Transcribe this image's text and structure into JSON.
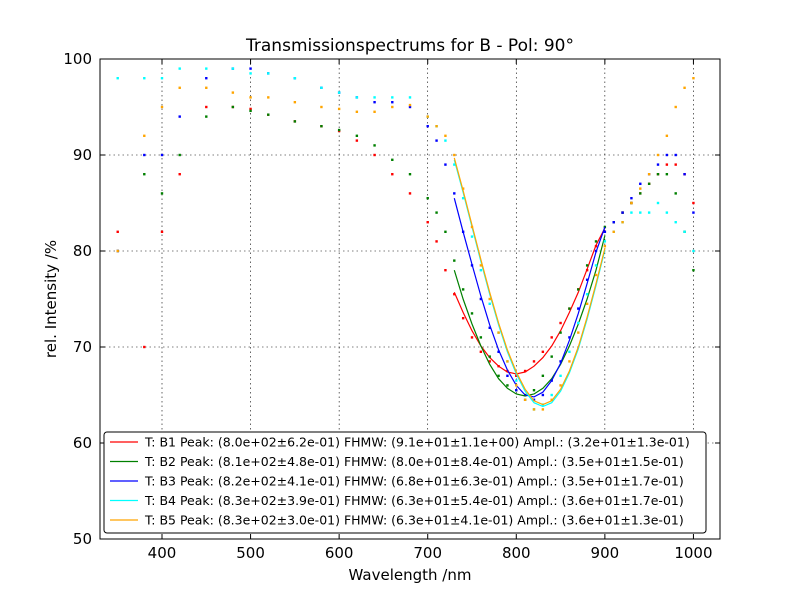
{
  "chart_data": {
    "type": "line",
    "title": "Transmissionspectrums for B - Pol: 90°",
    "xlabel": "Wavelength  /nm",
    "ylabel": "rel. Intensity  /%",
    "xlim": [
      330,
      1030
    ],
    "ylim": [
      50,
      100
    ],
    "xticks": [
      400,
      500,
      600,
      700,
      800,
      900,
      1000
    ],
    "yticks": [
      50,
      60,
      70,
      80,
      90,
      100
    ],
    "grid": true,
    "legend_position": "bottom-center",
    "series": [
      {
        "name": "T: B1 Peak: (8.0e+02±6.2e-01)  FHMW: (9.1e+01±1.1e+00)  Ampl.: (3.2e+01±1.3e-01)",
        "color": "#ff0000",
        "x": [
          350,
          380,
          400,
          420,
          450,
          480,
          500,
          520,
          550,
          580,
          600,
          620,
          640,
          660,
          680,
          700,
          710,
          720,
          730,
          740,
          750,
          760,
          770,
          780,
          790,
          800,
          810,
          820,
          830,
          840,
          850,
          860,
          870,
          880,
          890,
          900,
          910,
          920,
          930,
          940,
          950,
          960,
          970,
          980,
          990,
          1000
        ],
        "y": [
          82,
          70,
          82,
          88,
          95,
          95,
          94.8,
          94.2,
          93.5,
          93,
          92.5,
          91.5,
          90,
          88,
          86,
          83,
          81,
          78,
          75.5,
          73,
          71,
          69.5,
          68.5,
          68,
          67.5,
          67,
          67.5,
          68.5,
          69.5,
          71,
          72.5,
          74,
          76,
          78,
          80.5,
          82,
          83,
          84,
          85,
          86,
          87,
          88,
          89,
          89,
          88,
          85
        ],
        "fit_x": [
          730,
          740,
          750,
          760,
          770,
          780,
          790,
          800,
          810,
          820,
          830,
          840,
          850,
          860,
          870,
          880,
          890,
          900
        ],
        "fit_y": [
          75.7,
          73.6,
          71.7,
          70.1,
          68.9,
          68.0,
          67.4,
          67.2,
          67.4,
          68.0,
          68.9,
          70.1,
          71.7,
          73.6,
          75.7,
          78.1,
          80.6,
          82.4
        ]
      },
      {
        "name": "T: B2 Peak: (8.1e+02±4.8e-01)  FHMW: (8.0e+01±8.4e-01)  Ampl.: (3.5e+01±1.5e-01)",
        "color": "#008000",
        "x": [
          350,
          380,
          400,
          420,
          450,
          480,
          500,
          520,
          550,
          580,
          600,
          620,
          640,
          660,
          680,
          700,
          710,
          720,
          730,
          740,
          750,
          760,
          770,
          780,
          790,
          800,
          810,
          820,
          830,
          840,
          850,
          860,
          870,
          880,
          890,
          900,
          910,
          920,
          930,
          940,
          950,
          960,
          970,
          980,
          990,
          1000
        ],
        "y": [
          80,
          88,
          86,
          90,
          94,
          95,
          94.6,
          94.2,
          93.5,
          93,
          92.6,
          92,
          91,
          89.5,
          88,
          85.5,
          84,
          82,
          79,
          76,
          73.5,
          71,
          69,
          67,
          66,
          65.5,
          65,
          65.5,
          67,
          69,
          71.5,
          74,
          76,
          78.5,
          81,
          82.5,
          83,
          84,
          85,
          86,
          87,
          88,
          88,
          86,
          82,
          78
        ],
        "fit_x": [
          730,
          740,
          750,
          760,
          770,
          780,
          790,
          800,
          810,
          820,
          830,
          840,
          850,
          860,
          870,
          880,
          890,
          900
        ],
        "fit_y": [
          78.0,
          75.0,
          72.4,
          70.1,
          68.2,
          66.7,
          65.7,
          65.1,
          64.9,
          65.1,
          65.7,
          66.7,
          68.2,
          70.1,
          72.4,
          75.0,
          78.0,
          81.6
        ]
      },
      {
        "name": "T: B3 Peak: (8.2e+02±4.1e-01)  FHMW: (6.8e+01±6.3e-01)  Ampl.: (3.5e+01±1.7e-01)",
        "color": "#0000ff",
        "x": [
          350,
          380,
          400,
          420,
          450,
          480,
          500,
          520,
          550,
          580,
          600,
          620,
          640,
          660,
          680,
          700,
          710,
          720,
          730,
          740,
          750,
          760,
          770,
          780,
          790,
          800,
          810,
          820,
          830,
          840,
          850,
          860,
          870,
          880,
          890,
          900,
          910,
          920,
          930,
          940,
          950,
          960,
          970,
          980,
          990,
          1000
        ],
        "y": [
          80,
          90,
          90,
          94,
          98,
          99,
          99,
          98.5,
          98,
          97,
          96.5,
          96,
          95.5,
          95.5,
          95,
          93,
          91.5,
          89,
          86,
          82,
          78.5,
          75,
          72,
          69.5,
          67,
          65.5,
          64.5,
          64.5,
          65,
          66.5,
          68.5,
          71,
          74,
          77,
          80,
          82,
          83,
          84,
          85.5,
          87,
          88,
          89,
          90,
          90,
          88,
          84
        ],
        "fit_x": [
          730,
          740,
          750,
          760,
          770,
          780,
          790,
          800,
          810,
          820,
          830,
          840,
          850,
          860,
          870,
          880,
          890,
          900
        ],
        "fit_y": [
          85.5,
          82.0,
          78.6,
          75.3,
          72.3,
          69.7,
          67.6,
          66.0,
          65.0,
          64.8,
          65.3,
          66.5,
          68.3,
          70.7,
          73.5,
          76.6,
          79.9,
          82.5
        ]
      },
      {
        "name": "T: B4 Peak: (8.3e+02±3.9e-01)  FHMW: (6.3e+01±5.4e-01)  Ampl.: (3.6e+01±1.7e-01)",
        "color": "#00ffff",
        "x": [
          350,
          380,
          400,
          420,
          450,
          480,
          500,
          520,
          550,
          580,
          600,
          620,
          640,
          660,
          680,
          700,
          710,
          720,
          730,
          740,
          750,
          760,
          770,
          780,
          790,
          800,
          810,
          820,
          830,
          840,
          850,
          860,
          870,
          880,
          890,
          900,
          910,
          920,
          930,
          940,
          950,
          960,
          970,
          980,
          990,
          1000
        ],
        "y": [
          98,
          98,
          98,
          99,
          99,
          99,
          98.5,
          98.5,
          98,
          97,
          96.5,
          96,
          96,
          96,
          96,
          94,
          93,
          91.5,
          89,
          85.5,
          81.5,
          78,
          74.5,
          71.5,
          68.5,
          66.5,
          64.5,
          63.5,
          64,
          65,
          67,
          69.5,
          72.5,
          75.5,
          78.5,
          81,
          82,
          83,
          84,
          84,
          84,
          85,
          84,
          83,
          82,
          80
        ],
        "fit_x": [
          730,
          740,
          750,
          760,
          770,
          780,
          790,
          800,
          810,
          820,
          830,
          840,
          850,
          860,
          870,
          880,
          890,
          900
        ],
        "fit_y": [
          89.5,
          86.1,
          82.5,
          78.9,
          75.5,
          72.3,
          69.5,
          67.2,
          65.4,
          64.2,
          63.8,
          64.2,
          65.4,
          67.3,
          69.8,
          72.9,
          76.4,
          80.1
        ]
      },
      {
        "name": "T: B5 Peak: (8.3e+02±3.0e-01)  FHMW: (6.3e+01±4.1e-01)  Ampl.: (3.6e+01±1.3e-01)",
        "color": "#ffa500",
        "x": [
          350,
          380,
          400,
          420,
          450,
          480,
          500,
          520,
          550,
          580,
          600,
          620,
          640,
          660,
          680,
          700,
          710,
          720,
          730,
          740,
          750,
          760,
          770,
          780,
          790,
          800,
          810,
          820,
          830,
          840,
          850,
          860,
          870,
          880,
          890,
          900,
          910,
          920,
          930,
          940,
          950,
          960,
          970,
          980,
          990,
          1000
        ],
        "y": [
          80,
          92,
          95,
          97,
          97,
          96.5,
          96,
          96,
          95.5,
          95,
          94.8,
          94.5,
          94.5,
          95,
          95.2,
          94,
          93,
          92,
          90,
          86.5,
          82.5,
          78.5,
          75,
          71.5,
          68.5,
          66,
          64.5,
          63.5,
          63.5,
          64.5,
          66,
          68.5,
          71.5,
          74.5,
          77.5,
          80.5,
          82,
          83,
          85,
          86.5,
          88,
          90,
          92,
          95,
          97,
          98
        ],
        "fit_x": [
          730,
          740,
          750,
          760,
          770,
          780,
          790,
          800,
          810,
          820,
          830,
          840,
          850,
          860,
          870,
          880,
          890,
          900
        ],
        "fit_y": [
          89.7,
          86.3,
          82.7,
          79.1,
          75.7,
          72.5,
          69.7,
          67.4,
          65.6,
          64.4,
          64.0,
          64.4,
          65.6,
          67.5,
          70.0,
          73.1,
          76.6,
          80.3
        ]
      }
    ]
  }
}
